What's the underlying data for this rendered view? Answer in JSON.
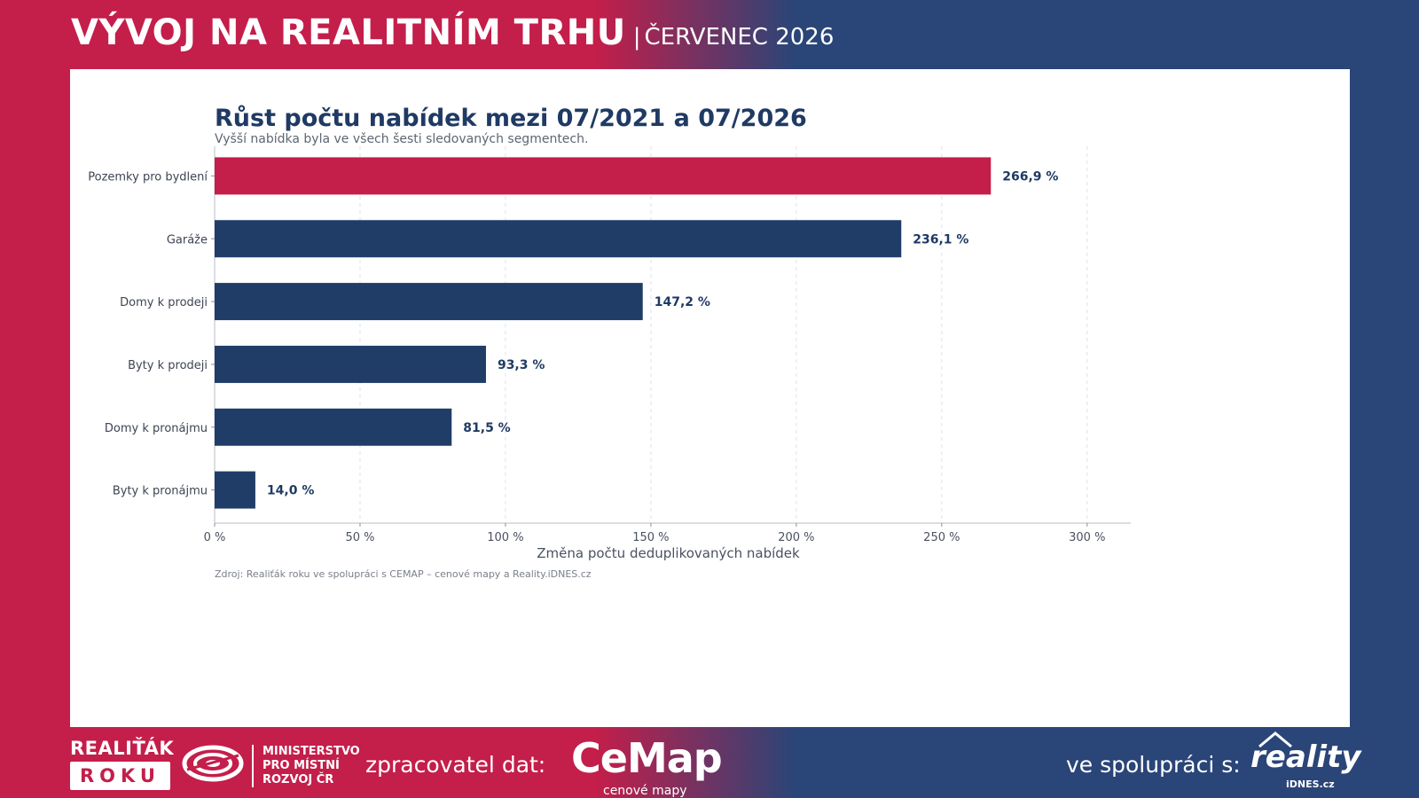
{
  "header": {
    "title": "VÝVOJ NA REALITNÍM TRHU",
    "separator": "|",
    "subtitle": "ČERVENEC 2026"
  },
  "chart_data": {
    "type": "bar",
    "orientation": "horizontal",
    "title": "Růst počtu nabídek mezi 07/2021 a 07/2026",
    "subtitle": "Vyšší nabídka byla ve všech šesti sledovaných segmentech.",
    "categories": [
      "Pozemky pro bydlení",
      "Garáže",
      "Domy k prodeji",
      "Byty k prodeji",
      "Domy k pronájmu",
      "Byty k pronájmu"
    ],
    "values": [
      266.9,
      236.1,
      147.2,
      93.3,
      81.5,
      14.0
    ],
    "value_labels": [
      "266,9 %",
      "236,1 %",
      "147,2 %",
      "93,3 %",
      "81,5 %",
      "14,0 %"
    ],
    "highlight_index": 0,
    "xlabel": "Změna počtu deduplikovaných nabídek",
    "ylabel": "",
    "xlim": [
      0,
      315
    ],
    "xticks": [
      0,
      50,
      100,
      150,
      200,
      250,
      300
    ],
    "xtick_labels": [
      "0 %",
      "50 %",
      "100 %",
      "150 %",
      "200 %",
      "250 %",
      "300 %"
    ],
    "grid": "vertical-dashed",
    "legend": "none",
    "colors": {
      "highlight": "#c41e4a",
      "default": "#203d68"
    }
  },
  "source": "Zdroj: Realiťák roku ve spolupráci s CEMAP – cenové mapy a Reality.iDNES.cz",
  "footer": {
    "realitak_top": "REALIŤÁK",
    "realitak_bottom": "ROKU",
    "mmr_lines": [
      "MINISTERSTVO",
      "PRO MÍSTNÍ",
      "ROZVOJ ČR"
    ],
    "processor_label": "zpracovatel dat:",
    "cemap_word": "CeMap",
    "cemap_sub": "cenové mapy",
    "partner_label": "ve spolupráci s:",
    "reality_word": "reality",
    "reality_sub": "iDNES.cz"
  },
  "colors": {
    "brand_red": "#c41e4a",
    "brand_blue": "#2a4577",
    "title_blue": "#1f3a63"
  }
}
